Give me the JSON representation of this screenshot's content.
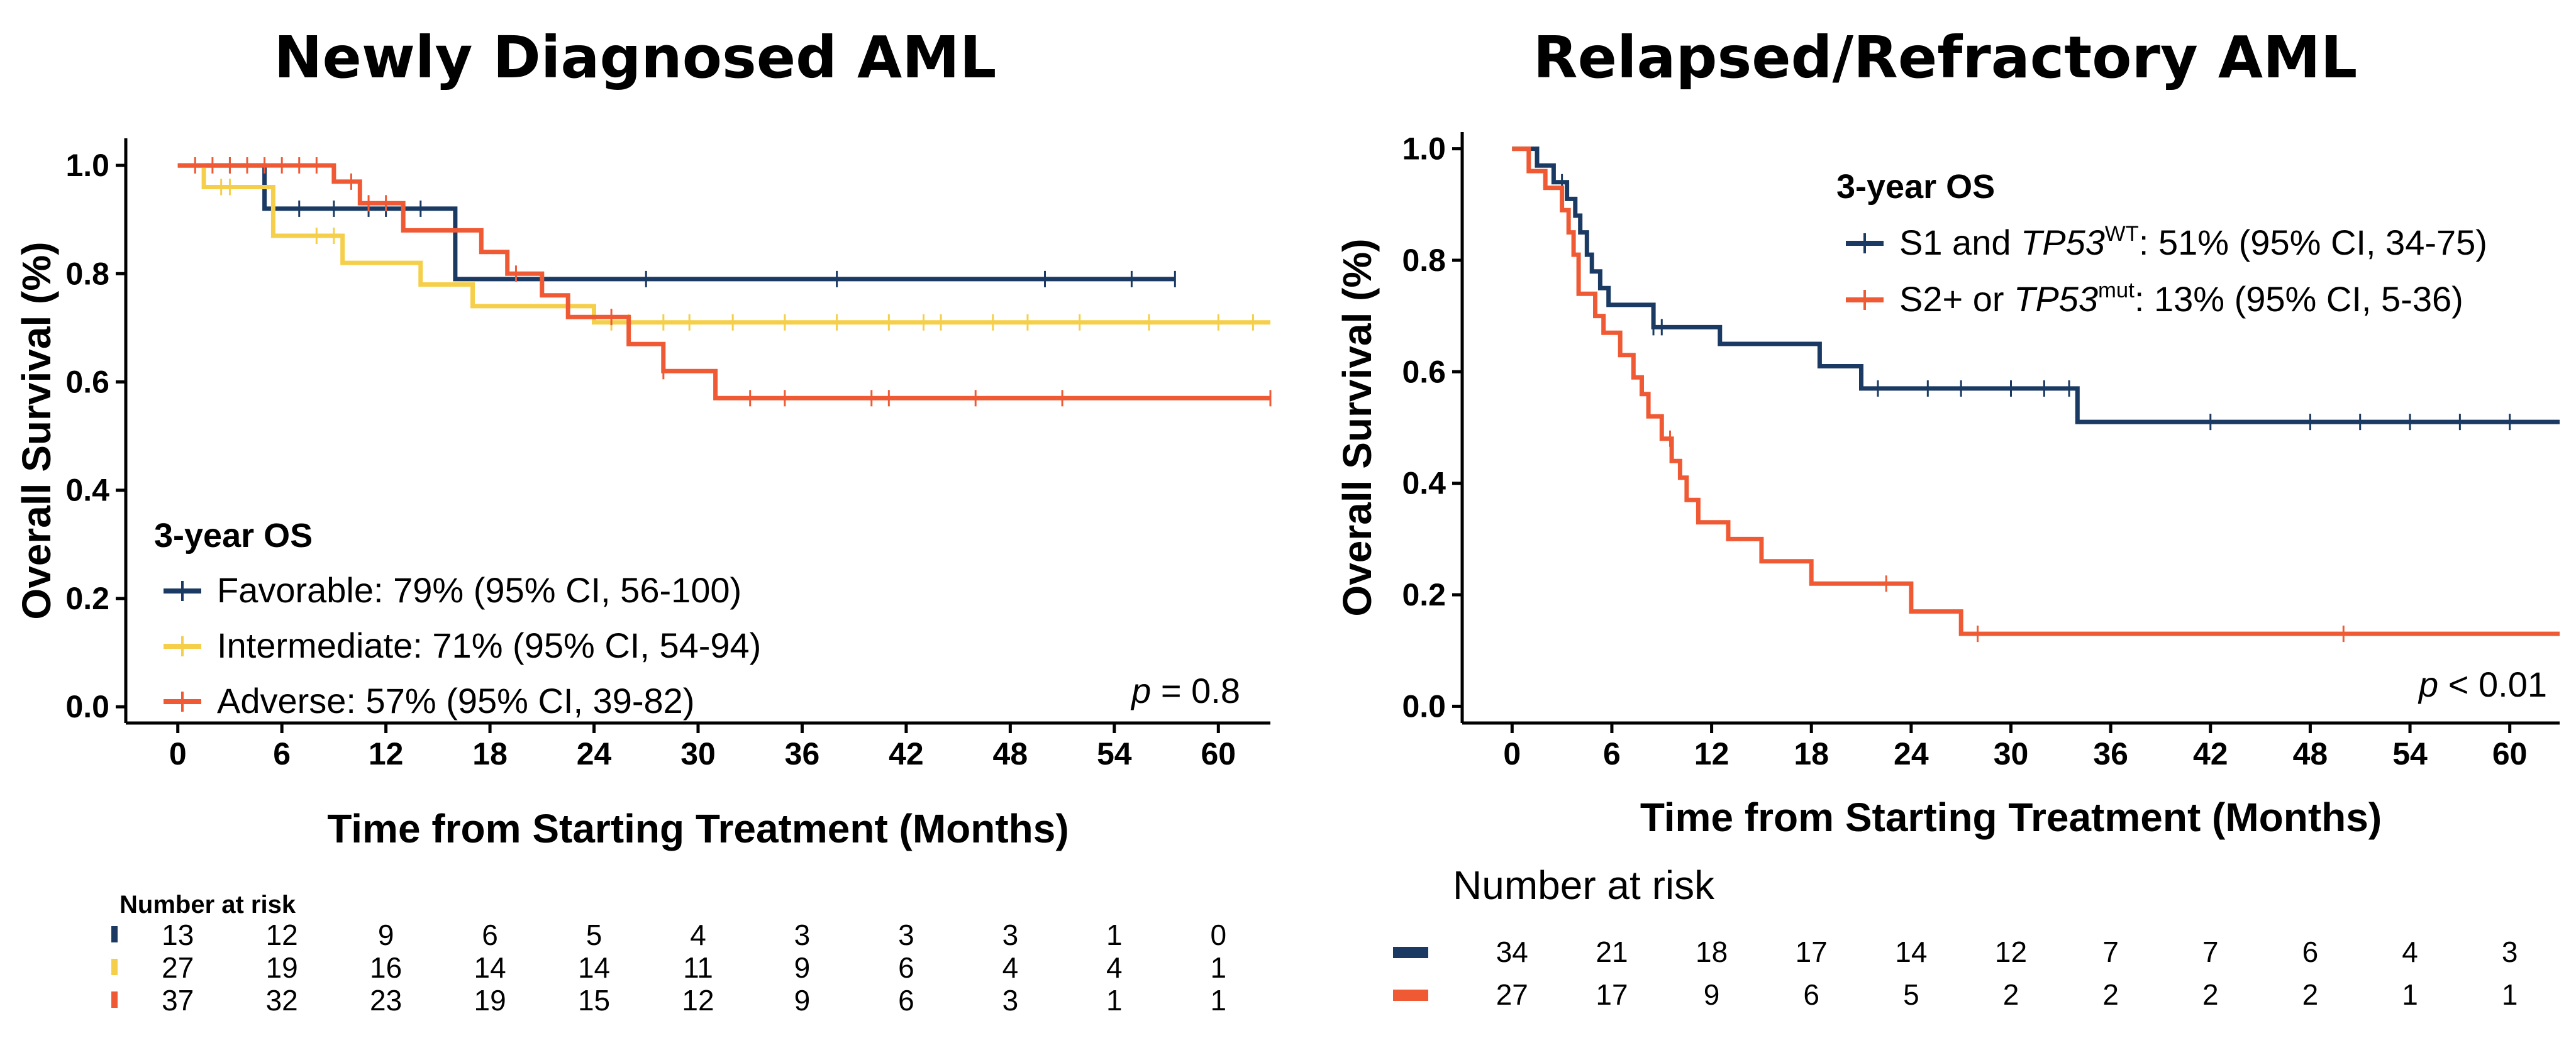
{
  "colors": {
    "navy": "#1a3a63",
    "yellow": "#f5cf4a",
    "orange": "#ef5a35",
    "axis": "#000000"
  },
  "chart_data": [
    {
      "type": "line",
      "subtype": "kaplan-meier",
      "title": "Newly Diagnosed AML",
      "xlabel": "Time from Starting Treatment (Months)",
      "ylabel": "Overall Survival (%)",
      "xlim": [
        -3,
        63
      ],
      "ylim": [
        -0.03,
        1.05
      ],
      "xticks": [
        0,
        6,
        12,
        18,
        24,
        30,
        36,
        42,
        48,
        54,
        60
      ],
      "yticks": [
        "0.0",
        "0.2",
        "0.4",
        "0.6",
        "0.8",
        "1.0"
      ],
      "legend_title": "3-year OS",
      "legend_placement": "bottom-left",
      "pvalue_label": "p",
      "pvalue_text": " = 0.8",
      "series": [
        {
          "name": "Favorable: 79% (95% CI, 56-100)",
          "color": "navy",
          "steps": [
            [
              0,
              1.0
            ],
            [
              5,
              1.0
            ],
            [
              5,
              0.92
            ],
            [
              16,
              0.92
            ],
            [
              16,
              0.79
            ],
            [
              57.5,
              0.79
            ]
          ],
          "censor": [
            3,
            7,
            9,
            11,
            12,
            14,
            27,
            38,
            50,
            55,
            57.5
          ]
        },
        {
          "name": "Intermediate: 71% (95% CI, 54-94)",
          "color": "yellow",
          "steps": [
            [
              0,
              1.0
            ],
            [
              1.5,
              1.0
            ],
            [
              1.5,
              0.96
            ],
            [
              5.5,
              0.96
            ],
            [
              5.5,
              0.87
            ],
            [
              9.5,
              0.87
            ],
            [
              9.5,
              0.82
            ],
            [
              14,
              0.82
            ],
            [
              14,
              0.78
            ],
            [
              17,
              0.78
            ],
            [
              17,
              0.74
            ],
            [
              24,
              0.74
            ],
            [
              24,
              0.71
            ],
            [
              63,
              0.71
            ]
          ],
          "censor": [
            1,
            2.5,
            3,
            8,
            9,
            25,
            26,
            28,
            29.5,
            32,
            35,
            38,
            41,
            43,
            44,
            47,
            49,
            52,
            56,
            60,
            62
          ]
        },
        {
          "name": "Adverse: 57% (95% CI, 39-82)",
          "color": "orange",
          "steps": [
            [
              0,
              1.0
            ],
            [
              9,
              1.0
            ],
            [
              9,
              0.97
            ],
            [
              10.5,
              0.97
            ],
            [
              10.5,
              0.93
            ],
            [
              13,
              0.93
            ],
            [
              13,
              0.88
            ],
            [
              17.5,
              0.88
            ],
            [
              17.5,
              0.84
            ],
            [
              19,
              0.84
            ],
            [
              19,
              0.8
            ],
            [
              21,
              0.8
            ],
            [
              21,
              0.76
            ],
            [
              22.5,
              0.76
            ],
            [
              22.5,
              0.72
            ],
            [
              26,
              0.72
            ],
            [
              26,
              0.67
            ],
            [
              28,
              0.67
            ],
            [
              28,
              0.62
            ],
            [
              31,
              0.62
            ],
            [
              31,
              0.57
            ],
            [
              63,
              0.57
            ]
          ],
          "censor": [
            1,
            2,
            3,
            4,
            5,
            6,
            7,
            8,
            10,
            11,
            12,
            19.5,
            25,
            28,
            33,
            35,
            40,
            41,
            46,
            51,
            63
          ]
        }
      ],
      "risk_table": {
        "title": "Number at risk",
        "rows": [
          {
            "color": "navy",
            "values": [
              "13",
              "12",
              "9",
              "6",
              "5",
              "4",
              "3",
              "3",
              "3",
              "1",
              "0"
            ]
          },
          {
            "color": "yellow",
            "values": [
              "27",
              "19",
              "16",
              "14",
              "14",
              "11",
              "9",
              "6",
              "4",
              "4",
              "1"
            ]
          },
          {
            "color": "orange",
            "values": [
              "37",
              "32",
              "23",
              "19",
              "15",
              "12",
              "9",
              "6",
              "3",
              "1",
              "1"
            ]
          }
        ]
      }
    },
    {
      "type": "line",
      "subtype": "kaplan-meier",
      "title": "Relapsed/Refractory AML",
      "xlabel": "Time from Starting Treatment (Months)",
      "ylabel": "Overall Survival (%)",
      "xlim": [
        -3,
        63
      ],
      "ylim": [
        -0.03,
        1.03
      ],
      "xticks": [
        0,
        6,
        12,
        18,
        24,
        30,
        36,
        42,
        48,
        54,
        60
      ],
      "yticks": [
        "0.0",
        "0.2",
        "0.4",
        "0.6",
        "0.8",
        "1.0"
      ],
      "legend_title": "3-year OS",
      "legend_placement": "top-right",
      "pvalue_label": "p",
      "pvalue_text": " < 0.01",
      "series": [
        {
          "name_parts": [
            "S1 and ",
            "TP53",
            "WT",
            ": 51%  (95% CI, 34-75)"
          ],
          "color": "navy",
          "steps": [
            [
              0,
              1.0
            ],
            [
              1.5,
              1.0
            ],
            [
              1.5,
              0.97
            ],
            [
              2.5,
              0.97
            ],
            [
              2.5,
              0.94
            ],
            [
              3.3,
              0.94
            ],
            [
              3.3,
              0.91
            ],
            [
              3.8,
              0.91
            ],
            [
              3.8,
              0.88
            ],
            [
              4.1,
              0.88
            ],
            [
              4.1,
              0.85
            ],
            [
              4.5,
              0.85
            ],
            [
              4.5,
              0.81
            ],
            [
              4.8,
              0.81
            ],
            [
              4.8,
              0.78
            ],
            [
              5.3,
              0.78
            ],
            [
              5.3,
              0.75
            ],
            [
              5.8,
              0.75
            ],
            [
              5.8,
              0.72
            ],
            [
              8.5,
              0.72
            ],
            [
              8.5,
              0.68
            ],
            [
              12.5,
              0.68
            ],
            [
              12.5,
              0.65
            ],
            [
              18.5,
              0.65
            ],
            [
              18.5,
              0.61
            ],
            [
              21,
              0.61
            ],
            [
              21,
              0.57
            ],
            [
              34,
              0.57
            ],
            [
              34,
              0.51
            ],
            [
              63,
              0.51
            ]
          ],
          "censor": [
            3,
            8.5,
            9,
            22,
            25,
            27,
            30,
            32,
            33.5,
            42,
            48,
            51,
            54,
            57,
            60
          ]
        },
        {
          "name_parts": [
            "S2+ or ",
            "TP53",
            "mut",
            ": 13% (95% CI, 5-36)"
          ],
          "color": "orange",
          "steps": [
            [
              0,
              1.0
            ],
            [
              1.0,
              1.0
            ],
            [
              1.0,
              0.96
            ],
            [
              2.0,
              0.96
            ],
            [
              2.0,
              0.93
            ],
            [
              3.0,
              0.93
            ],
            [
              3.0,
              0.89
            ],
            [
              3.4,
              0.89
            ],
            [
              3.4,
              0.85
            ],
            [
              3.7,
              0.85
            ],
            [
              3.7,
              0.81
            ],
            [
              4.0,
              0.81
            ],
            [
              4.0,
              0.74
            ],
            [
              5.0,
              0.74
            ],
            [
              5.0,
              0.7
            ],
            [
              5.5,
              0.7
            ],
            [
              5.5,
              0.67
            ],
            [
              6.5,
              0.67
            ],
            [
              6.5,
              0.63
            ],
            [
              7.3,
              0.63
            ],
            [
              7.3,
              0.59
            ],
            [
              7.8,
              0.59
            ],
            [
              7.8,
              0.56
            ],
            [
              8.2,
              0.56
            ],
            [
              8.2,
              0.52
            ],
            [
              9,
              0.52
            ],
            [
              9,
              0.48
            ],
            [
              9.6,
              0.48
            ],
            [
              9.6,
              0.44
            ],
            [
              10.1,
              0.44
            ],
            [
              10.1,
              0.41
            ],
            [
              10.5,
              0.41
            ],
            [
              10.5,
              0.37
            ],
            [
              11.2,
              0.37
            ],
            [
              11.2,
              0.33
            ],
            [
              13,
              0.33
            ],
            [
              13,
              0.3
            ],
            [
              15,
              0.3
            ],
            [
              15,
              0.26
            ],
            [
              18,
              0.26
            ],
            [
              18,
              0.22
            ],
            [
              24,
              0.22
            ],
            [
              24,
              0.17
            ],
            [
              27,
              0.17
            ],
            [
              27,
              0.13
            ],
            [
              63,
              0.13
            ]
          ],
          "censor": [
            9.5,
            22.5,
            28,
            50
          ]
        }
      ],
      "risk_table": {
        "title": "Number at risk",
        "rows": [
          {
            "color": "navy",
            "values": [
              "34",
              "21",
              "18",
              "17",
              "14",
              "12",
              "7",
              "7",
              "6",
              "4",
              "3"
            ]
          },
          {
            "color": "orange",
            "values": [
              "27",
              "17",
              "9",
              "6",
              "5",
              "2",
              "2",
              "2",
              "2",
              "1",
              "1"
            ]
          }
        ]
      }
    }
  ]
}
